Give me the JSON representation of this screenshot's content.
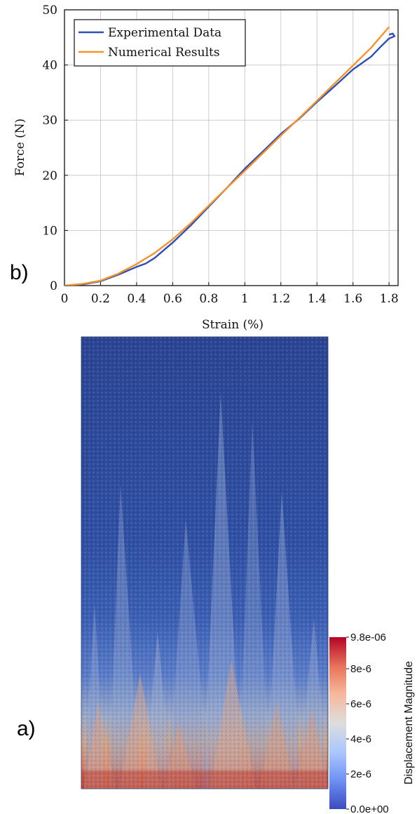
{
  "panel_labels": {
    "chart": "b)",
    "field": "a)"
  },
  "chart_data": [
    {
      "type": "line",
      "xlabel": "Strain (%)",
      "ylabel": "Force (N)",
      "xlim": [
        0,
        1.85
      ],
      "ylim": [
        0,
        50
      ],
      "x_ticks": [
        0,
        0.2,
        0.4,
        0.6,
        0.8,
        1,
        1.2,
        1.4,
        1.6,
        1.8
      ],
      "x_tick_labels": [
        "0",
        "0.2",
        "0.4",
        "0.6",
        "0.8",
        "1",
        "1.2",
        "1.4",
        "1.6",
        "1.8"
      ],
      "y_ticks": [
        0,
        10,
        20,
        30,
        40,
        50
      ],
      "y_tick_labels": [
        "0",
        "10",
        "20",
        "30",
        "40",
        "50"
      ],
      "grid": true,
      "legend_position": "top-left",
      "series": [
        {
          "name": "Experimental Data",
          "color": "#2b4fb8",
          "x": [
            0,
            0.1,
            0.2,
            0.3,
            0.4,
            0.45,
            0.5,
            0.55,
            0.6,
            0.7,
            0.8,
            0.9,
            1.0,
            1.1,
            1.2,
            1.3,
            1.4,
            1.5,
            1.6,
            1.7,
            1.75,
            1.8,
            1.83,
            1.82,
            1.8
          ],
          "y": [
            0,
            0.2,
            0.8,
            2.0,
            3.4,
            4.0,
            5.0,
            6.4,
            7.8,
            10.9,
            14.3,
            17.7,
            21.2,
            24.3,
            27.5,
            30.2,
            33.3,
            36.2,
            39.2,
            41.5,
            43.2,
            44.8,
            45.2,
            45.7,
            45.5
          ]
        },
        {
          "name": "Numerical Results",
          "color": "#f5922a",
          "x": [
            0,
            0.1,
            0.2,
            0.3,
            0.4,
            0.5,
            0.6,
            0.7,
            0.8,
            0.9,
            1.0,
            1.1,
            1.2,
            1.3,
            1.4,
            1.5,
            1.6,
            1.7,
            1.8
          ],
          "y": [
            0,
            0.3,
            0.9,
            2.2,
            3.9,
            5.9,
            8.4,
            11.3,
            14.5,
            17.7,
            20.8,
            24.0,
            27.2,
            30.3,
            33.5,
            36.7,
            39.9,
            43.1,
            46.9
          ]
        }
      ]
    },
    {
      "type": "heatmap",
      "colorbar": {
        "title": "Displacement Magnitude",
        "tick_labels": [
          "9.8e-06",
          "8e-6",
          "6e-6",
          "4e-6",
          "2e-6",
          "0.0e+00"
        ],
        "tick_values": [
          9.8e-06,
          8e-06,
          6e-06,
          4e-06,
          2e-06,
          0
        ],
        "range": [
          0,
          9.8e-06
        ],
        "colors": [
          "#3b4cc0",
          "#6f92f3",
          "#aac7fd",
          "#dddddd",
          "#f7b89c",
          "#e7745b",
          "#b40426"
        ]
      }
    }
  ]
}
